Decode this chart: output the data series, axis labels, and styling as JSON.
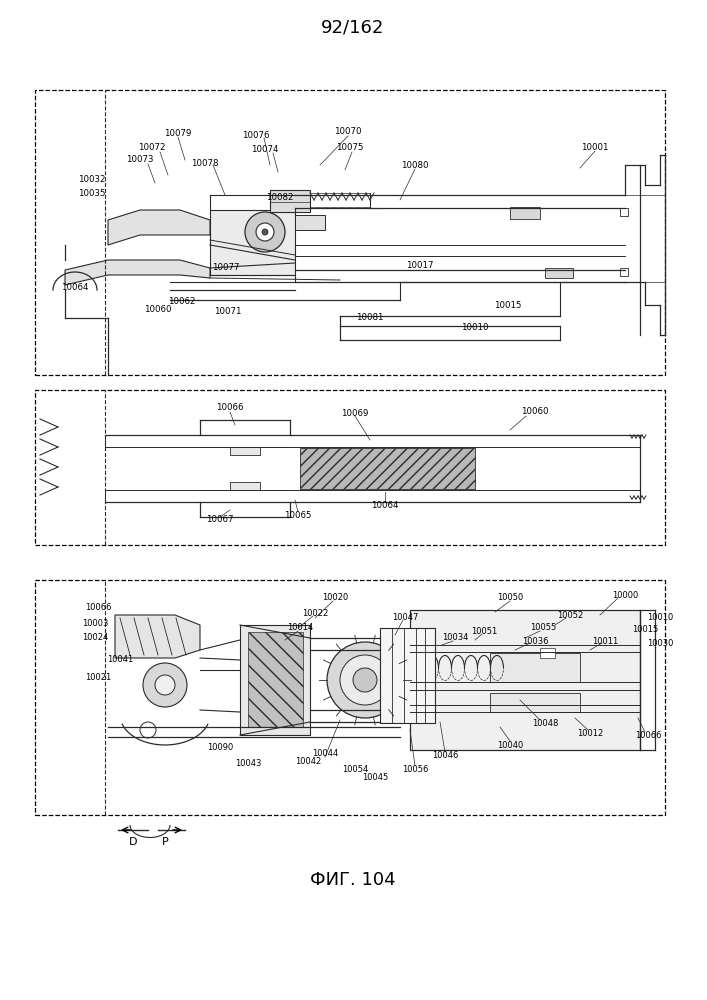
{
  "title_top": "92/162",
  "fig_label": "ФИГ. 104",
  "bg_color": "#ffffff",
  "line_color": "#2a2a2a"
}
